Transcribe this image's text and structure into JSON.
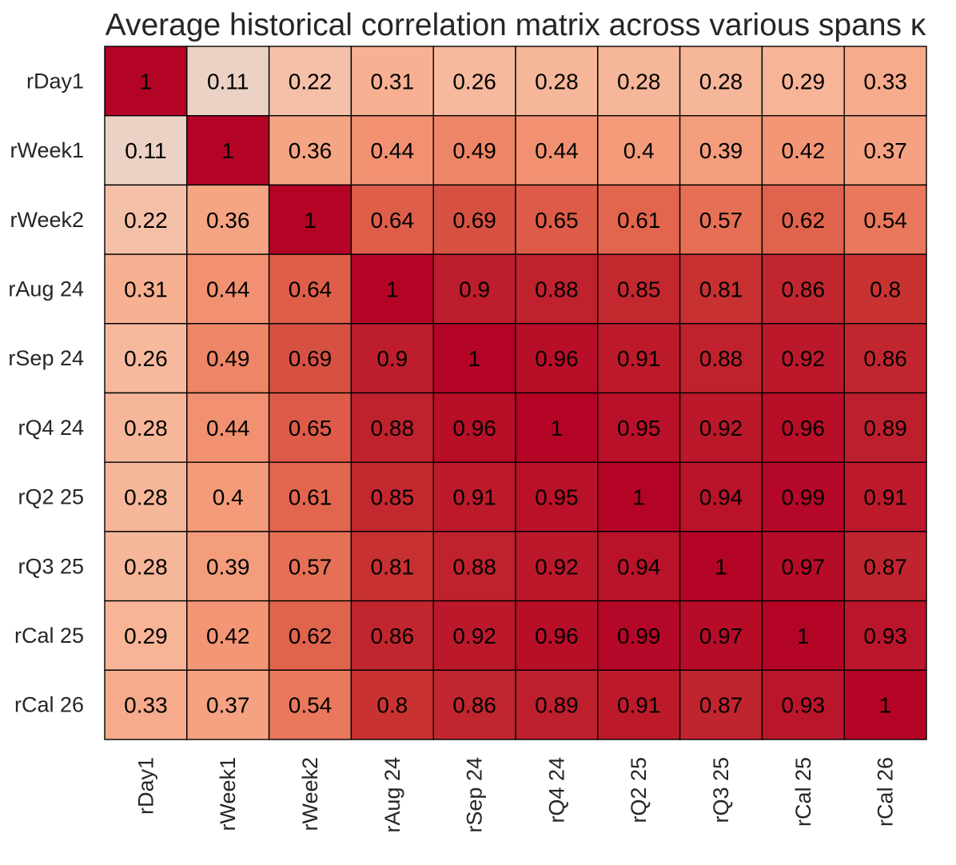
{
  "chart_data": {
    "type": "heatmap",
    "title": "Average historical correlation matrix across various spans κ",
    "xlabel": "",
    "ylabel": "",
    "rows": [
      "rDay1",
      "rWeek1",
      "rWeek2",
      "rAug 24",
      "rSep 24",
      "rQ4 24",
      "rQ2 25",
      "rQ3 25",
      "rCal 25",
      "rCal 26"
    ],
    "columns": [
      "rDay1",
      "rWeek1",
      "rWeek2",
      "rAug 24",
      "rSep 24",
      "rQ4 24",
      "rQ2 25",
      "rQ3 25",
      "rCal 25",
      "rCal 26"
    ],
    "values": [
      [
        1,
        0.11,
        0.22,
        0.31,
        0.26,
        0.28,
        0.28,
        0.28,
        0.29,
        0.33
      ],
      [
        0.11,
        1,
        0.36,
        0.44,
        0.49,
        0.44,
        0.4,
        0.39,
        0.42,
        0.37
      ],
      [
        0.22,
        0.36,
        1,
        0.64,
        0.69,
        0.65,
        0.61,
        0.57,
        0.62,
        0.54
      ],
      [
        0.31,
        0.44,
        0.64,
        1,
        0.9,
        0.88,
        0.85,
        0.81,
        0.86,
        0.8
      ],
      [
        0.26,
        0.49,
        0.69,
        0.9,
        1,
        0.96,
        0.91,
        0.88,
        0.92,
        0.86
      ],
      [
        0.28,
        0.44,
        0.65,
        0.88,
        0.96,
        1,
        0.95,
        0.92,
        0.96,
        0.89
      ],
      [
        0.28,
        0.4,
        0.61,
        0.85,
        0.91,
        0.95,
        1,
        0.94,
        0.99,
        0.91
      ],
      [
        0.28,
        0.39,
        0.57,
        0.81,
        0.88,
        0.92,
        0.94,
        1,
        0.97,
        0.87
      ],
      [
        0.29,
        0.42,
        0.62,
        0.86,
        0.92,
        0.96,
        0.99,
        0.97,
        1,
        0.93
      ],
      [
        0.33,
        0.37,
        0.54,
        0.8,
        0.86,
        0.89,
        0.91,
        0.87,
        0.93,
        1
      ]
    ],
    "colormap": "coolwarm",
    "color_range": [
      -1,
      1
    ],
    "colors": {
      "cell_border": "#000000",
      "text": "#000000"
    },
    "grid": true,
    "legend": "none"
  }
}
